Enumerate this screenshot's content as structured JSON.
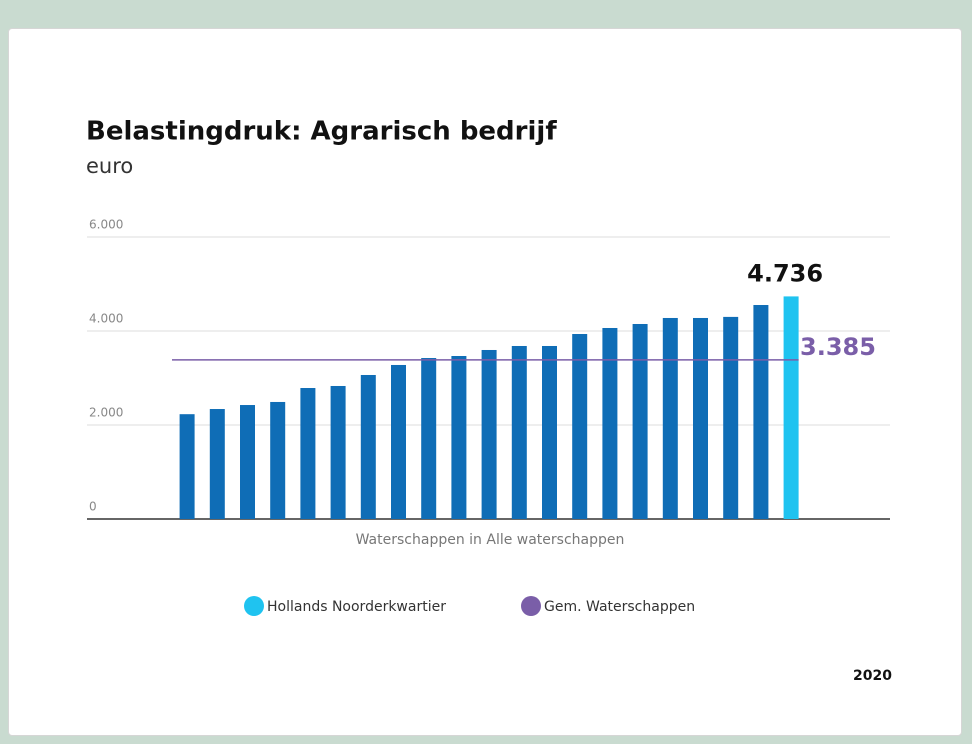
{
  "chart_data": {
    "type": "bar",
    "title": "Belastingdruk: Agrarisch bedrijf",
    "subtitle": "euro",
    "x_label": "Waterschappen in Alle waterschappen",
    "categories": [
      null,
      null,
      null,
      null,
      null,
      null,
      null,
      null,
      null,
      null,
      null,
      null,
      null,
      null,
      null,
      null,
      null,
      null,
      null,
      null,
      null
    ],
    "values": [
      2230,
      2340,
      2425,
      2490,
      2787,
      2830,
      3064,
      3277,
      3425,
      3468,
      3596,
      3681,
      3681,
      3936,
      4064,
      4149,
      4277,
      4277,
      4300,
      4553,
      4736
    ],
    "value_labels": [
      null,
      null,
      null,
      null,
      null,
      null,
      null,
      null,
      null,
      null,
      null,
      null,
      null,
      null,
      null,
      null,
      null,
      null,
      null,
      null,
      "4.736"
    ],
    "colors": [
      "#0f6db6",
      "#0f6db6",
      "#0f6db6",
      "#0f6db6",
      "#0f6db6",
      "#0f6db6",
      "#0f6db6",
      "#0f6db6",
      "#0f6db6",
      "#0f6db6",
      "#0f6db6",
      "#0f6db6",
      "#0f6db6",
      "#0f6db6",
      "#0f6db6",
      "#0f6db6",
      "#0f6db6",
      "#0f6db6",
      "#0f6db6",
      "#0f6db6",
      "#1fc3f0"
    ],
    "reference_line": {
      "value": 3385,
      "label": "3.385",
      "color": "#7a5ea8"
    },
    "legend": [
      {
        "name": "Hollands Noorderkwartier",
        "color": "#1fc3f0"
      },
      {
        "name": "Gem. Waterschappen",
        "color": "#7a5ea8"
      }
    ],
    "ylim": [
      0,
      6000
    ],
    "yticks": [
      0,
      {
        "value": 2000,
        "label": "2.000"
      },
      {
        "value": 4000,
        "label": "4.000"
      },
      {
        "value": 6000,
        "label": "6.000"
      }
    ],
    "grid": true,
    "year": "2020"
  }
}
